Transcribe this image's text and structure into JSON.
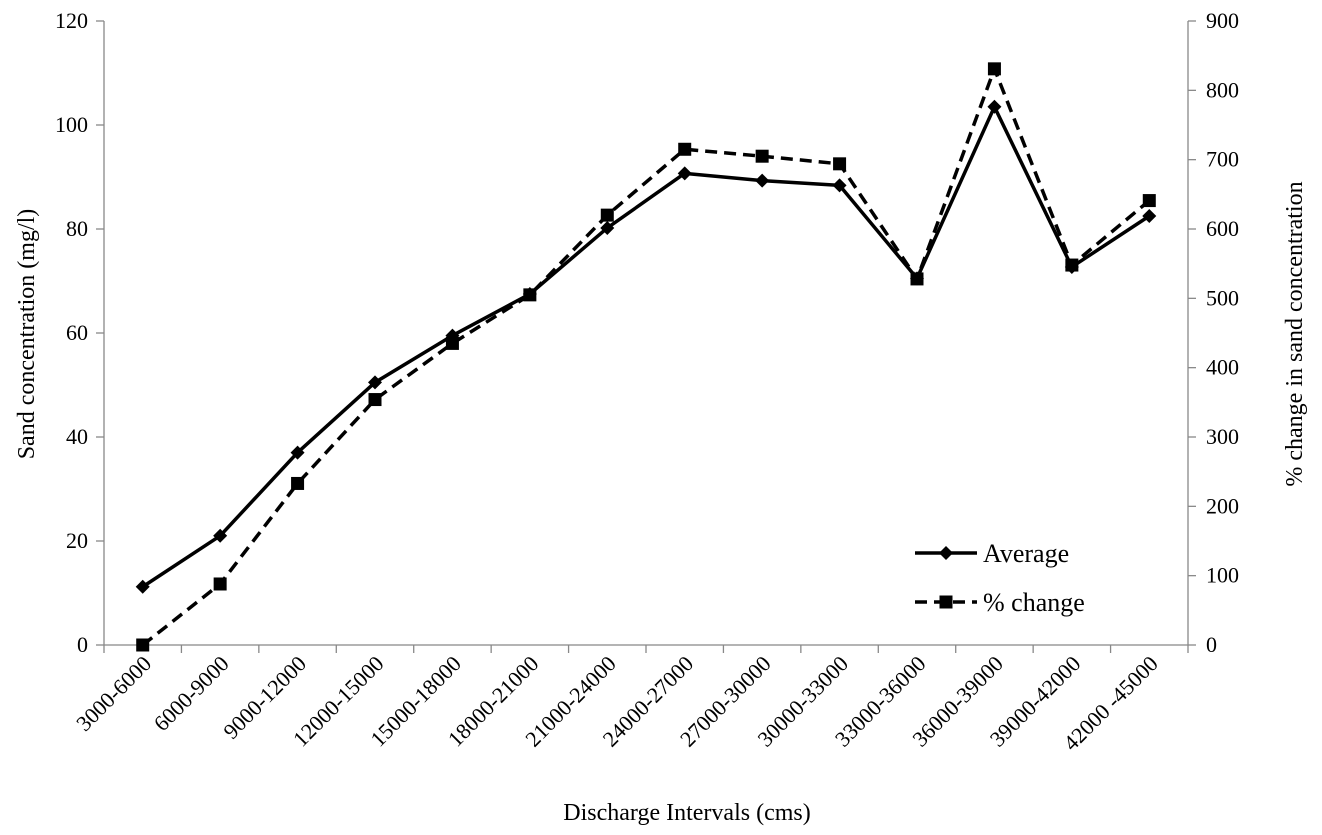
{
  "chart_data": {
    "type": "line",
    "categories": [
      "3000-6000",
      "6000-9000",
      "9000-12000",
      "12000-15000",
      "15000-18000",
      "18000-21000",
      "21000-24000",
      "24000-27000",
      "27000-30000",
      "30000-33000",
      "33000-36000",
      "36000-39000",
      "39000-42000",
      "42000 -45000"
    ],
    "series": [
      {
        "name": "Average",
        "axis": "left",
        "marker": "diamond",
        "line": "solid",
        "values": [
          11.2,
          21,
          37,
          50.5,
          59.5,
          67.5,
          80.2,
          90.7,
          89.3,
          88.4,
          70.5,
          103.5,
          72.7,
          82.5
        ]
      },
      {
        "name": "% change",
        "axis": "right",
        "marker": "square",
        "line": "dashed",
        "values": [
          0,
          88,
          233,
          354,
          435,
          505,
          620,
          715,
          705,
          694,
          528,
          831,
          548,
          641
        ]
      }
    ],
    "xlabel": "Discharge Intervals (cms)",
    "ylabel": "Sand concentration (mg/l)",
    "y2label": "% change in sand concentration",
    "ylim": [
      0,
      120
    ],
    "y2lim": [
      0,
      900
    ],
    "yticks": [
      "0",
      "20",
      "40",
      "60",
      "80",
      "100",
      "120"
    ],
    "y2ticks": [
      "0",
      "100",
      "200",
      "300",
      "400",
      "500",
      "600",
      "700",
      "800",
      "900"
    ],
    "grid": false,
    "legend_position": "bottom-right"
  }
}
